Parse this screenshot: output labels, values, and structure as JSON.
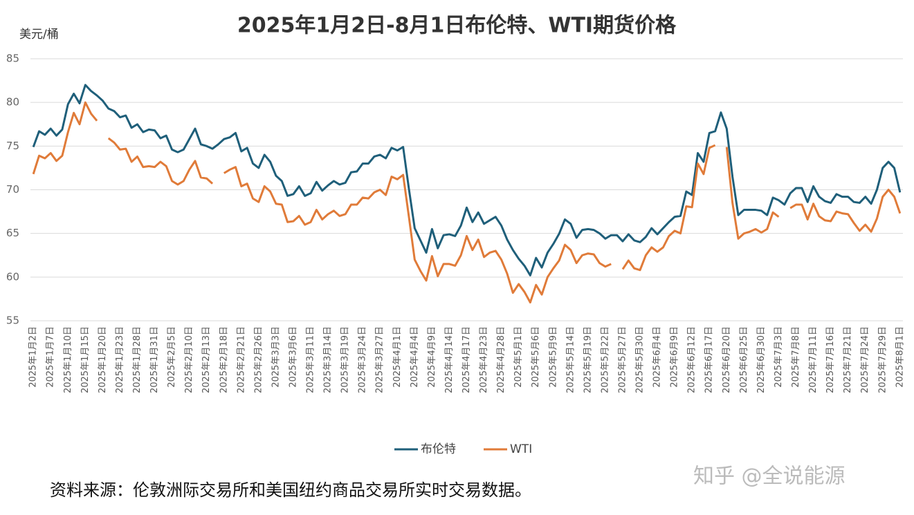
{
  "chart_data": {
    "type": "line",
    "title": "2025年1月2日-8月1日布伦特、WTI期货价格",
    "y_label": "美元/桶",
    "source": "资料来源：伦敦洲际交易所和美国纽约商品交易所实时交易数据。",
    "watermark": "知乎 @全说能源",
    "ylim": [
      55,
      85
    ],
    "yticks": [
      55,
      60,
      65,
      70,
      75,
      80,
      85
    ],
    "grid": true,
    "legend": "bottom",
    "categories": [
      "2025年1月2日",
      null,
      null,
      "2025年1月7日",
      null,
      null,
      "2025年1月10日",
      null,
      null,
      "2025年1月15日",
      null,
      null,
      "2025年1月20日",
      null,
      null,
      "2025年1月23日",
      null,
      null,
      "2025年1月28日",
      null,
      null,
      "2025年1月31日",
      null,
      null,
      "2025年2月5日",
      null,
      null,
      "2025年2月10日",
      null,
      null,
      "2025年2月13日",
      null,
      null,
      "2025年2月18日",
      null,
      null,
      "2025年2月21日",
      null,
      null,
      "2025年2月26日",
      null,
      null,
      "2025年3月3日",
      null,
      null,
      "2025年3月6日",
      null,
      null,
      "2025年3月11日",
      null,
      null,
      "2025年3月14日",
      null,
      null,
      "2025年3月19日",
      null,
      null,
      "2025年3月24日",
      null,
      null,
      "2025年3月27日",
      null,
      null,
      "2025年4月1日",
      null,
      null,
      "2025年4月4日",
      null,
      null,
      "2025年4月9日",
      null,
      null,
      "2025年4月14日",
      null,
      null,
      "2025年4月17日",
      null,
      null,
      "2025年4月23日",
      null,
      null,
      "2025年4月28日",
      null,
      null,
      "2025年5月1日",
      null,
      null,
      "2025年5月6日",
      null,
      null,
      "2025年5月9日",
      null,
      null,
      "2025年5月14日",
      null,
      null,
      "2025年5月19日",
      null,
      null,
      "2025年5月22日",
      null,
      null,
      "2025年5月27日",
      null,
      null,
      "2025年5月30日",
      null,
      null,
      "2025年6月4日",
      null,
      null,
      "2025年6月9日",
      null,
      null,
      "2025年6月12日",
      null,
      null,
      "2025年6月17日",
      null,
      null,
      "2025年6月20日",
      null,
      null,
      "2025年6月25日",
      null,
      null,
      "2025年6月30日",
      null,
      null,
      "2025年7月3日",
      null,
      null,
      "2025年7月8日",
      null,
      null,
      "2025年7月11日",
      null,
      null,
      "2025年7月16日",
      null,
      null,
      "2025年7月21日",
      null,
      null,
      "2025年7月24日",
      null,
      null,
      "2025年7月29日",
      null,
      null,
      "2025年8月1日"
    ],
    "series": [
      {
        "name": "布伦特",
        "color": "#1f5f7a",
        "values": [
          74.9,
          76.7,
          76.3,
          77.0,
          76.2,
          76.9,
          79.8,
          81.0,
          79.9,
          82.0,
          81.3,
          80.8,
          80.2,
          79.3,
          79.0,
          78.3,
          78.5,
          77.1,
          77.5,
          76.6,
          76.9,
          76.8,
          75.9,
          76.2,
          74.6,
          74.3,
          74.6,
          75.8,
          77.0,
          75.2,
          75.0,
          74.7,
          75.2,
          75.8,
          76.0,
          76.5,
          74.4,
          74.8,
          73.0,
          72.5,
          74.0,
          73.2,
          71.6,
          71.0,
          69.3,
          69.5,
          70.4,
          69.3,
          69.6,
          70.9,
          69.9,
          70.5,
          71.0,
          70.6,
          70.8,
          72.0,
          72.1,
          73.0,
          73.0,
          73.8,
          74.0,
          73.6,
          74.8,
          74.5,
          74.9,
          70.1,
          65.6,
          64.2,
          62.8,
          65.5,
          63.3,
          64.8,
          64.9,
          64.7,
          65.9,
          67.96,
          66.3,
          67.4,
          66.1,
          66.5,
          66.9,
          65.9,
          64.3,
          63.1,
          62.1,
          61.3,
          60.2,
          62.2,
          61.1,
          62.8,
          63.8,
          64.96,
          66.6,
          66.1,
          64.5,
          65.4,
          65.5,
          65.4,
          65.0,
          64.4,
          64.8,
          64.8,
          64.1,
          64.9,
          64.2,
          64.0,
          64.6,
          65.6,
          64.9,
          65.6,
          66.3,
          66.9,
          67.0,
          69.8,
          69.4,
          74.2,
          73.2,
          76.5,
          76.7,
          78.85,
          77.0,
          71.5,
          67.1,
          67.7,
          67.7,
          67.7,
          67.6,
          67.1,
          69.1,
          68.8,
          68.3,
          69.6,
          70.2,
          70.2,
          68.6,
          70.4,
          69.2,
          68.7,
          68.5,
          69.5,
          69.2,
          69.2,
          68.6,
          68.5,
          69.2,
          68.4,
          70.0,
          72.5,
          73.2,
          72.5,
          69.7
        ]
      },
      {
        "name": "WTI",
        "color": "#e07b39",
        "values": [
          71.8,
          73.9,
          73.6,
          74.2,
          73.3,
          73.9,
          76.6,
          78.8,
          77.5,
          80.0,
          78.7,
          77.9,
          null,
          75.9,
          75.4,
          74.6,
          74.7,
          73.2,
          73.8,
          72.6,
          72.7,
          72.6,
          73.2,
          72.7,
          71.0,
          70.6,
          71.0,
          72.3,
          73.3,
          71.4,
          71.3,
          70.7,
          null,
          71.9,
          72.3,
          72.6,
          70.4,
          70.7,
          69.0,
          68.6,
          70.4,
          69.8,
          68.4,
          68.3,
          66.3,
          66.4,
          67.0,
          66.0,
          66.3,
          67.7,
          66.6,
          67.2,
          67.6,
          67.0,
          67.2,
          68.3,
          68.3,
          69.1,
          69.0,
          69.7,
          70.0,
          69.4,
          71.5,
          71.2,
          71.7,
          66.9,
          62.0,
          60.7,
          59.6,
          62.4,
          60.1,
          61.5,
          61.5,
          61.3,
          62.5,
          64.7,
          63.1,
          64.3,
          62.3,
          62.8,
          63.0,
          62.0,
          60.4,
          58.2,
          59.2,
          58.3,
          57.1,
          59.1,
          58.0,
          60.0,
          61.0,
          61.9,
          63.7,
          63.1,
          61.6,
          62.5,
          62.7,
          62.6,
          61.6,
          61.2,
          61.5,
          null,
          60.9,
          61.9,
          61.0,
          60.8,
          62.5,
          63.4,
          62.9,
          63.4,
          64.7,
          65.3,
          65.0,
          68.1,
          68.0,
          73.0,
          71.8,
          74.8,
          75.1,
          null,
          74.9,
          68.5,
          64.4,
          65.0,
          65.2,
          65.5,
          65.1,
          65.5,
          67.4,
          66.9,
          null,
          67.9,
          68.3,
          68.3,
          66.6,
          68.4,
          66.96,
          66.5,
          66.4,
          67.5,
          67.3,
          67.2,
          66.2,
          65.3,
          66.0,
          65.2,
          66.7,
          69.2,
          70.0,
          69.2,
          67.3
        ]
      }
    ]
  }
}
